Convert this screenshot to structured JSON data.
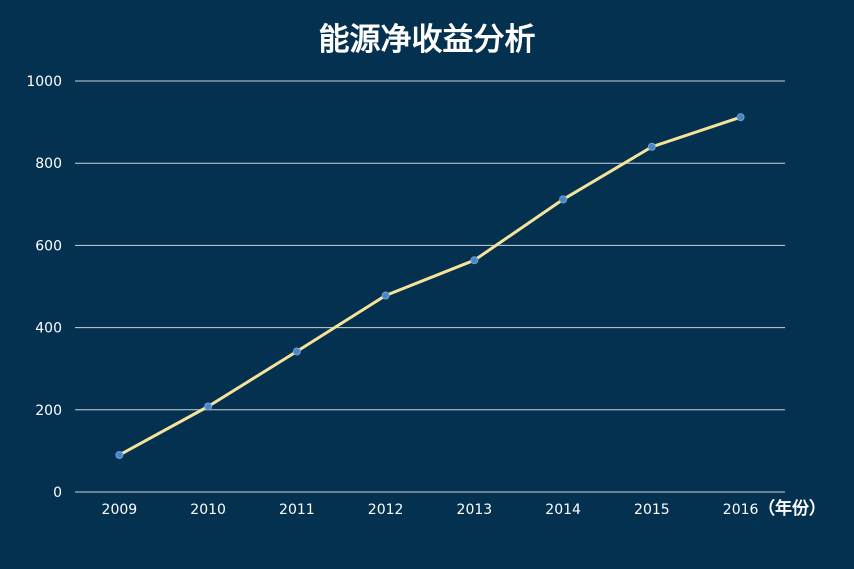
{
  "chart_data": {
    "type": "line",
    "title": "能源净收益分析",
    "xlabel": "（年份）",
    "ylabel": "",
    "categories": [
      "2009",
      "2010",
      "2011",
      "2012",
      "2013",
      "2014",
      "2015",
      "2016"
    ],
    "series": [
      {
        "values": [
          90,
          208,
          342,
          478,
          564,
          712,
          840,
          912
        ]
      }
    ],
    "ylim": [
      0,
      1000
    ],
    "yticks": [
      0,
      200,
      400,
      600,
      800,
      1000
    ],
    "grid": true,
    "legend": "none",
    "colors": {
      "background": "#04314f",
      "line": "#f5e39a",
      "point": "#4a86c5",
      "grid": "#c9d3dc",
      "text": "#ffffff"
    }
  }
}
